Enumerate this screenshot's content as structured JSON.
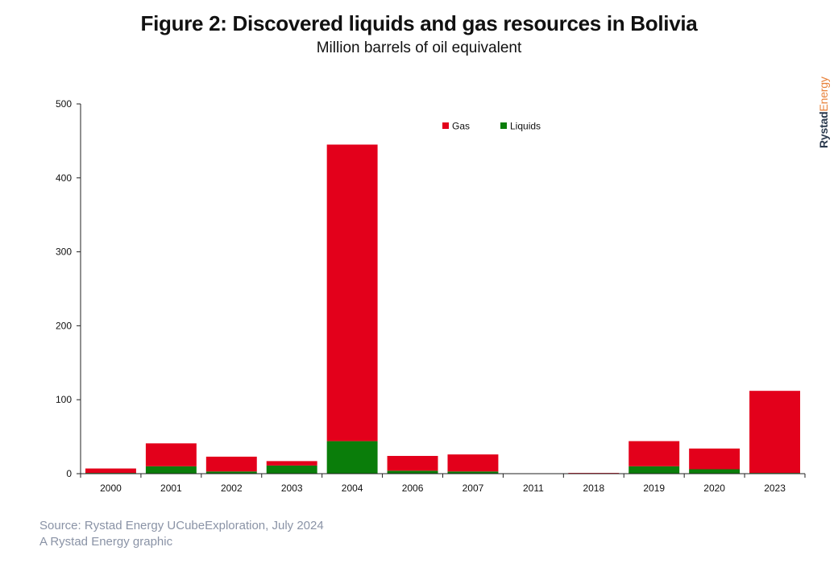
{
  "header": {
    "title": "Figure 2: Discovered liquids and gas resources in Bolivia",
    "subtitle": "Million barrels of oil equivalent"
  },
  "brand": {
    "part1": "Rystad",
    "part2": "Energy"
  },
  "footer": {
    "source": "Source: Rystad Energy UCubeExploration, July 2024",
    "credit": "A Rystad Energy graphic"
  },
  "colors": {
    "gas": "#e3001b",
    "liquids": "#0a7d0a",
    "brand_dark": "#2b3a4e",
    "brand_accent": "#e8813a"
  },
  "chart_data": {
    "type": "bar",
    "stacked": true,
    "categories": [
      "2000",
      "2001",
      "2002",
      "2003",
      "2004",
      "2006",
      "2007",
      "2011",
      "2018",
      "2019",
      "2020",
      "2023"
    ],
    "series": [
      {
        "name": "Liquids",
        "color": "#0a7d0a",
        "values": [
          1,
          10,
          3,
          11,
          44,
          4,
          3,
          0,
          0,
          10,
          6,
          1
        ]
      },
      {
        "name": "Gas",
        "color": "#e3001b",
        "values": [
          6,
          31,
          20,
          6,
          401,
          20,
          23,
          0,
          1,
          34,
          28,
          111
        ]
      }
    ],
    "ylim": [
      0,
      500
    ],
    "yticks": [
      0,
      100,
      200,
      300,
      400,
      500
    ],
    "legend_order": [
      "Gas",
      "Liquids"
    ],
    "legend_position": "top-center",
    "grid": false
  }
}
